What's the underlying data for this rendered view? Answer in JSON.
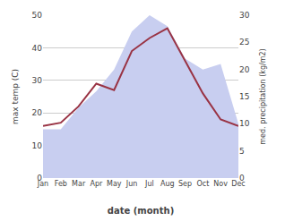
{
  "chart_data": {
    "type": "line",
    "xlabel": "date (month)",
    "ylabel": "max temp (C)",
    "y2label": "med. precipitation (kg/m2)",
    "categories": [
      "Jan",
      "Feb",
      "Mar",
      "Apr",
      "May",
      "Jun",
      "Jul",
      "Aug",
      "Sep",
      "Oct",
      "Nov",
      "Dec"
    ],
    "series": [
      {
        "type": "area",
        "axis": "y2",
        "color": "#c8cef0",
        "values": [
          9,
          9,
          13,
          16,
          20,
          27,
          30,
          28,
          22,
          20,
          21,
          10
        ]
      },
      {
        "type": "line",
        "color": "#993344",
        "values": [
          16,
          17,
          22,
          29,
          27,
          39,
          43,
          46,
          36,
          26,
          18,
          16
        ]
      }
    ],
    "ylim": [
      0,
      50
    ],
    "yticks": [
      0,
      10,
      20,
      30,
      40,
      50
    ],
    "y2lim": [
      0,
      30
    ],
    "y2ticks": [
      0,
      5,
      10,
      15,
      20,
      25,
      30
    ],
    "grid": true
  }
}
